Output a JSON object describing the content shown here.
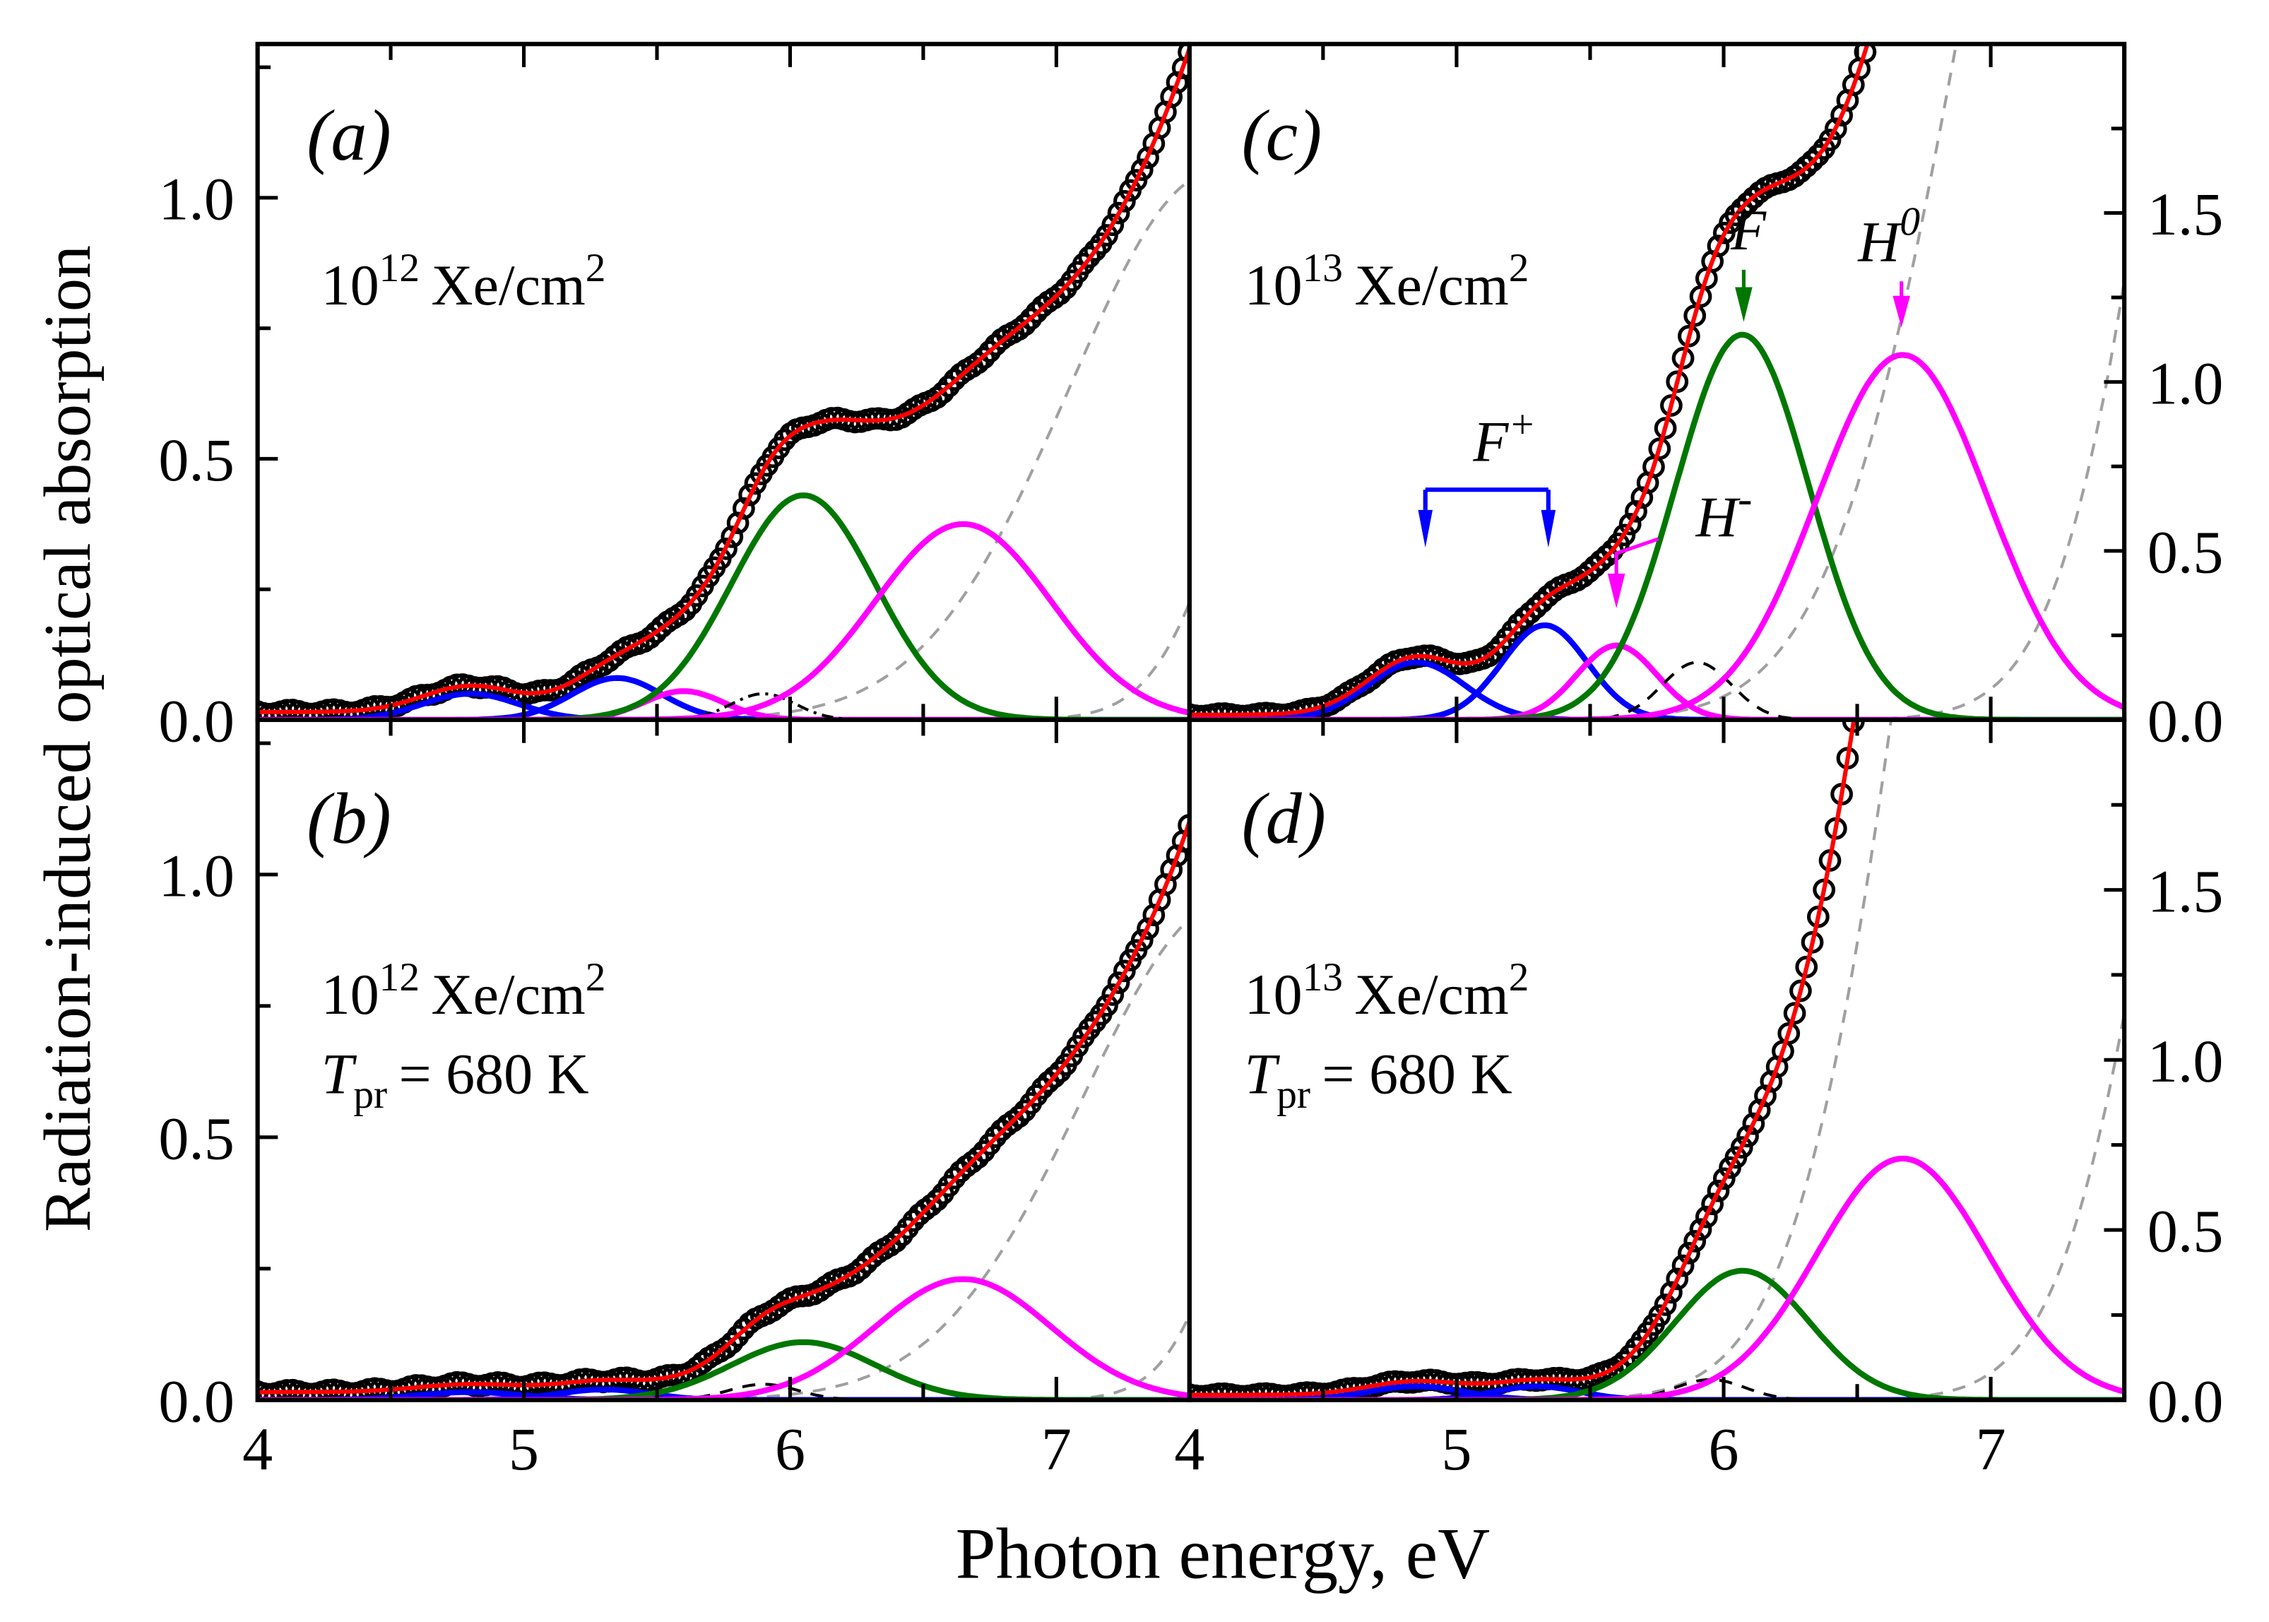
{
  "chart_data": {
    "type": "line",
    "ylabel": "Radiation-induced optical absorption",
    "xlabel": "Photon energy, eV",
    "xlim": [
      4,
      7.5
    ],
    "x_ticks": [
      "4",
      "5",
      "6",
      "7"
    ],
    "left_y_ticks": [
      "0.0",
      "0.5",
      "1.0"
    ],
    "right_y_ticks": [
      "0.0",
      "0.5",
      "1.0",
      "1.5"
    ],
    "colors": {
      "data": "#000000",
      "fit": "#ff0000",
      "F_plus": "#0000ff",
      "F": "#007700",
      "H": "#ff00ff",
      "background": "#a0a0a0",
      "minor": "#000000"
    },
    "panels": [
      {
        "id": "a",
        "label": "(a)",
        "fluence_base": "10",
        "fluence_exp": "12",
        "fluence_unit": "Xe/cm",
        "fluence_unit_exp": "2",
        "axis": "left",
        "ylim": [
          0,
          1.3
        ],
        "components": [
          {
            "name": "F+ 1",
            "color": "F_plus",
            "style": "solid",
            "center": 4.8,
            "amp": 0.05,
            "sigma": 0.18
          },
          {
            "name": "F+ 2",
            "color": "F_plus",
            "style": "solid",
            "center": 5.35,
            "amp": 0.08,
            "sigma": 0.17
          },
          {
            "name": "H-",
            "color": "H",
            "style": "solid",
            "center": 5.6,
            "amp": 0.055,
            "sigma": 0.15
          },
          {
            "name": "minor band",
            "color": "minor",
            "style": "dashdot",
            "center": 5.9,
            "amp": 0.05,
            "sigma": 0.12
          },
          {
            "name": "F",
            "color": "F",
            "style": "solid",
            "center": 6.05,
            "amp": 0.43,
            "sigma": 0.27
          },
          {
            "name": "H0",
            "color": "H",
            "style": "solid",
            "center": 6.65,
            "amp": 0.375,
            "sigma": 0.33
          },
          {
            "name": "background 1",
            "color": "background",
            "style": "dashed",
            "center": 7.6,
            "amp": 1.05,
            "sigma": 0.55
          },
          {
            "name": "background 2",
            "color": "background",
            "style": "dashed",
            "center": 8.0,
            "amp": 0.9,
            "sigma": 0.3
          }
        ]
      },
      {
        "id": "b",
        "label": "(b)",
        "fluence_base": "10",
        "fluence_exp": "12",
        "fluence_unit": "Xe/cm",
        "fluence_unit_exp": "2",
        "anneal_symbol": "T",
        "anneal_sub": "pr",
        "anneal_value": "= 680 K",
        "axis": "left",
        "ylim": [
          0,
          1.3
        ],
        "components": [
          {
            "name": "F+ 1",
            "color": "F_plus",
            "style": "solid",
            "center": 4.8,
            "amp": 0.015,
            "sigma": 0.2
          },
          {
            "name": "F+ 2",
            "color": "F_plus",
            "style": "solid",
            "center": 5.3,
            "amp": 0.02,
            "sigma": 0.17
          },
          {
            "name": "minor band",
            "color": "minor",
            "style": "dashed",
            "center": 5.9,
            "amp": 0.03,
            "sigma": 0.13
          },
          {
            "name": "F",
            "color": "F",
            "style": "solid",
            "center": 6.05,
            "amp": 0.11,
            "sigma": 0.27
          },
          {
            "name": "H0",
            "color": "H",
            "style": "solid",
            "center": 6.65,
            "amp": 0.23,
            "sigma": 0.33
          },
          {
            "name": "background 1",
            "color": "background",
            "style": "dashed",
            "center": 7.65,
            "amp": 0.95,
            "sigma": 0.55
          },
          {
            "name": "background 2",
            "color": "background",
            "style": "dashed",
            "center": 8.0,
            "amp": 0.9,
            "sigma": 0.27
          }
        ]
      },
      {
        "id": "c",
        "label": "(c)",
        "fluence_base": "10",
        "fluence_exp": "13",
        "fluence_unit": "Xe/cm",
        "fluence_unit_exp": "2",
        "axis": "right",
        "ylim": [
          0,
          2.0
        ],
        "annotations": {
          "F_plus": "F",
          "F_plus_sup": "+",
          "F": "F",
          "H0": "H",
          "H0_sup": "0",
          "H_minus": "H",
          "H_minus_sup": "-"
        },
        "components": [
          {
            "name": "F+ 1",
            "color": "F_plus",
            "style": "solid",
            "center": 4.85,
            "amp": 0.17,
            "sigma": 0.18
          },
          {
            "name": "F+ 2",
            "color": "F_plus",
            "style": "solid",
            "center": 5.33,
            "amp": 0.28,
            "sigma": 0.16
          },
          {
            "name": "H-",
            "color": "H",
            "style": "solid",
            "center": 5.6,
            "amp": 0.22,
            "sigma": 0.15
          },
          {
            "name": "minor band",
            "color": "minor",
            "style": "dashed",
            "center": 5.9,
            "amp": 0.17,
            "sigma": 0.13
          },
          {
            "name": "F",
            "color": "F",
            "style": "solid",
            "center": 6.07,
            "amp": 1.14,
            "sigma": 0.25
          },
          {
            "name": "H0",
            "color": "H",
            "style": "solid",
            "center": 6.67,
            "amp": 1.08,
            "sigma": 0.32
          },
          {
            "name": "background 1",
            "color": "background",
            "style": "dashed",
            "center": 7.4,
            "amp": 3.5,
            "sigma": 0.5
          },
          {
            "name": "background 2",
            "color": "background",
            "style": "dashed",
            "center": 8.1,
            "amp": 4.0,
            "sigma": 0.4
          }
        ]
      },
      {
        "id": "d",
        "label": "(d)",
        "fluence_base": "10",
        "fluence_exp": "13",
        "fluence_unit": "Xe/cm",
        "fluence_unit_exp": "2",
        "anneal_symbol": "T",
        "anneal_sub": "pr",
        "anneal_value": "= 680 K",
        "axis": "right",
        "ylim": [
          0,
          2.0
        ],
        "components": [
          {
            "name": "F+ 1",
            "color": "F_plus",
            "style": "solid",
            "center": 4.85,
            "amp": 0.04,
            "sigma": 0.18
          },
          {
            "name": "F+ 2",
            "color": "F_plus",
            "style": "solid",
            "center": 5.3,
            "amp": 0.04,
            "sigma": 0.16
          },
          {
            "name": "minor band",
            "color": "minor",
            "style": "dashed",
            "center": 5.95,
            "amp": 0.06,
            "sigma": 0.13
          },
          {
            "name": "F",
            "color": "F",
            "style": "solid",
            "center": 6.07,
            "amp": 0.38,
            "sigma": 0.25
          },
          {
            "name": "H0",
            "color": "H",
            "style": "solid",
            "center": 6.67,
            "amp": 0.71,
            "sigma": 0.32
          },
          {
            "name": "background 1",
            "color": "background",
            "style": "dashed",
            "center": 7.2,
            "amp": 4.5,
            "sigma": 0.45
          },
          {
            "name": "background 2",
            "color": "background",
            "style": "dashed",
            "center": 8.1,
            "amp": 3.5,
            "sigma": 0.4
          }
        ]
      }
    ]
  }
}
